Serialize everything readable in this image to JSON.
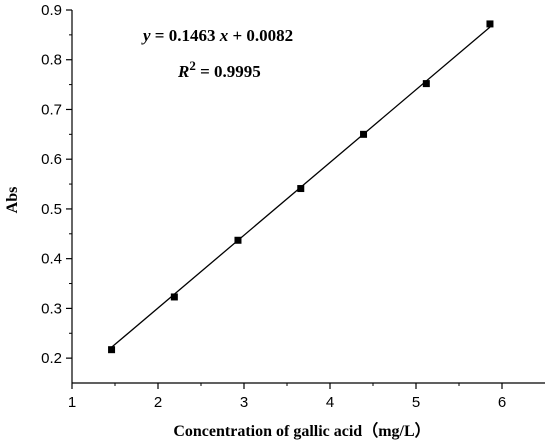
{
  "chart_data": {
    "type": "scatter",
    "title": "",
    "xlabel": "Concentration of gallic acid（mg/L）",
    "ylabel": "Abs",
    "xlim": [
      1,
      6.5
    ],
    "ylim": [
      0.15,
      0.9
    ],
    "x_ticks": [
      1,
      2,
      3,
      4,
      5,
      6
    ],
    "y_ticks": [
      0.2,
      0.3,
      0.4,
      0.5,
      0.6,
      0.7,
      0.8,
      0.9
    ],
    "x_tick_labels": [
      "1",
      "2",
      "3",
      "4",
      "5",
      "6"
    ],
    "y_tick_labels": [
      "0.2",
      "0.3",
      "0.4",
      "0.5",
      "0.6",
      "0.7",
      "0.8",
      "0.9"
    ],
    "grid": false,
    "series": [
      {
        "marker": "square",
        "color": "#000000",
        "x": [
          1.46,
          2.19,
          2.93,
          3.66,
          4.39,
          5.12,
          5.86
        ],
        "y": [
          0.217,
          0.323,
          0.437,
          0.541,
          0.65,
          0.752,
          0.872
        ]
      }
    ],
    "fit_line": {
      "slope": 0.1463,
      "intercept": 0.0082,
      "x_range": [
        1.46,
        5.86
      ]
    },
    "annotations": {
      "equation": {
        "y": "y",
        "eq1": " = 0.1463 ",
        "x": "x",
        "eq2": " + 0.0082"
      },
      "r2": {
        "r": "R",
        "sup": "2",
        "rest": " = 0.9995"
      }
    }
  }
}
